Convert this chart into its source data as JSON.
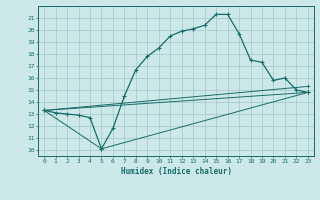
{
  "xlabel": "Humidex (Indice chaleur)",
  "background_color": "#cce8e8",
  "grid_color": "#aacccc",
  "line_color": "#1a6b6b",
  "xlim": [
    -0.5,
    23.5
  ],
  "ylim": [
    9.5,
    22.0
  ],
  "yticks": [
    10,
    11,
    12,
    13,
    14,
    15,
    16,
    17,
    18,
    19,
    20,
    21
  ],
  "xticks": [
    0,
    1,
    2,
    3,
    4,
    5,
    6,
    7,
    8,
    9,
    10,
    11,
    12,
    13,
    14,
    15,
    16,
    17,
    18,
    19,
    20,
    21,
    22,
    23
  ],
  "series": [
    {
      "x": [
        0,
        1,
        2,
        3,
        4,
        5,
        6,
        7,
        8,
        9,
        10,
        11,
        12,
        13,
        14,
        15,
        16,
        17,
        18,
        19,
        20,
        21,
        22,
        23
      ],
      "y": [
        13.3,
        13.1,
        13.0,
        12.9,
        12.7,
        10.1,
        11.8,
        14.5,
        16.7,
        17.8,
        18.5,
        19.5,
        19.9,
        20.1,
        20.4,
        21.3,
        21.3,
        19.7,
        17.5,
        17.3,
        15.8,
        16.0,
        15.0,
        14.8
      ]
    },
    {
      "x": [
        0,
        23
      ],
      "y": [
        13.3,
        14.8
      ]
    },
    {
      "x": [
        0,
        5,
        23
      ],
      "y": [
        13.3,
        10.1,
        14.8
      ]
    },
    {
      "x": [
        0,
        23
      ],
      "y": [
        13.3,
        15.3
      ]
    }
  ]
}
